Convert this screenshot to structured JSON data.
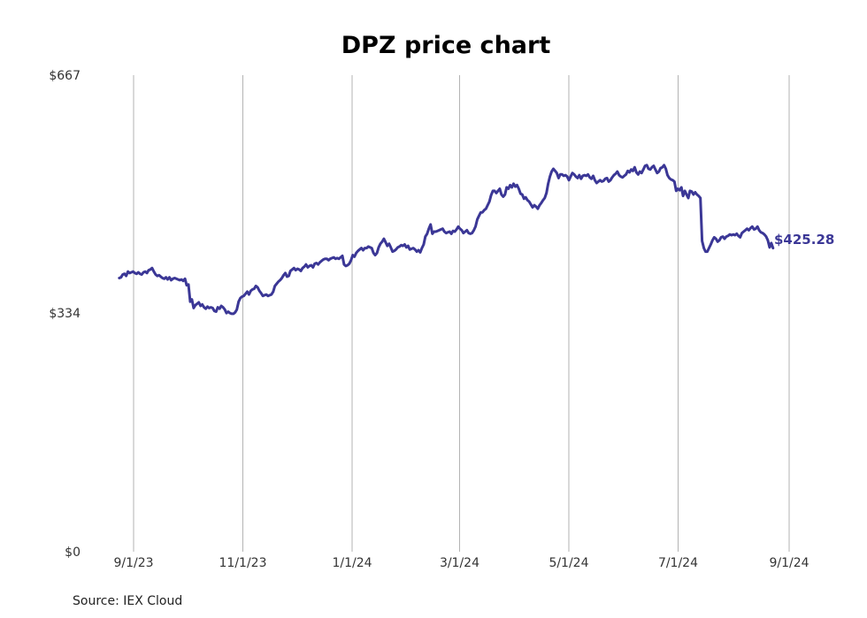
{
  "chart_data": {
    "type": "line",
    "title": "DPZ price chart",
    "source": "Source: IEX Cloud",
    "xlabel": "",
    "ylabel": "",
    "x_start": "2023-08-24",
    "x_end": "2024-08-23",
    "xlim": [
      "2023-08-01",
      "2024-09-01"
    ],
    "ylim": [
      0,
      667
    ],
    "y_ticks": [
      {
        "value": 0,
        "label": "$0"
      },
      {
        "value": 334,
        "label": "$334"
      },
      {
        "value": 667,
        "label": "$667"
      }
    ],
    "x_ticks": [
      {
        "date": "2023-09-01",
        "label": "9/1/23"
      },
      {
        "date": "2023-11-01",
        "label": "11/1/23"
      },
      {
        "date": "2024-01-01",
        "label": "1/1/24"
      },
      {
        "date": "2024-03-01",
        "label": "3/1/24"
      },
      {
        "date": "2024-05-01",
        "label": "5/1/24"
      },
      {
        "date": "2024-07-01",
        "label": "7/1/24"
      },
      {
        "date": "2024-09-01",
        "label": "9/1/24"
      }
    ],
    "grid": {
      "x": true,
      "y": false
    },
    "series": [
      {
        "color": "#3b3796",
        "end_label": "$425.28",
        "values": [
          383,
          384,
          388,
          389,
          386,
          392,
          390,
          391,
          392,
          390,
          389,
          391,
          389,
          388,
          391,
          392,
          390,
          394,
          395,
          397,
          392,
          388,
          386,
          387,
          385,
          383,
          382,
          384,
          381,
          384,
          380,
          382,
          383,
          382,
          381,
          380,
          381,
          379,
          382,
          373,
          374,
          350,
          353,
          341,
          345,
          347,
          349,
          344,
          346,
          342,
          340,
          343,
          341,
          342,
          341,
          337,
          336,
          342,
          340,
          344,
          342,
          339,
          334,
          336,
          334,
          333,
          333,
          335,
          339,
          350,
          355,
          357,
          358,
          361,
          364,
          360,
          365,
          367,
          368,
          372,
          370,
          365,
          362,
          358,
          359,
          360,
          358,
          359,
          360,
          364,
          372,
          375,
          378,
          380,
          383,
          387,
          390,
          385,
          386,
          393,
          395,
          397,
          394,
          396,
          395,
          393,
          397,
          399,
          402,
          398,
          400,
          401,
          398,
          403,
          404,
          402,
          405,
          407,
          409,
          410,
          410,
          408,
          410,
          411,
          412,
          410,
          411,
          410,
          412,
          414,
          402,
          400,
          401,
          403,
          408,
          415,
          413,
          418,
          421,
          423,
          425,
          422,
          425,
          425,
          427,
          426,
          425,
          418,
          415,
          418,
          426,
          431,
          434,
          438,
          433,
          428,
          431,
          426,
          420,
          421,
          423,
          426,
          427,
          429,
          428,
          430,
          426,
          428,
          423,
          424,
          425,
          423,
          420,
          422,
          419,
          425,
          430,
          441,
          445,
          452,
          458,
          445,
          448,
          448,
          449,
          450,
          451,
          452,
          448,
          446,
          447,
          448,
          445,
          449,
          448,
          451,
          455,
          452,
          450,
          446,
          448,
          450,
          446,
          445,
          446,
          450,
          455,
          465,
          470,
          475,
          475,
          478,
          480,
          485,
          490,
          499,
          505,
          505,
          502,
          505,
          508,
          500,
          497,
          500,
          510,
          508,
          513,
          510,
          515,
          511,
          513,
          508,
          501,
          500,
          494,
          496,
          492,
          490,
          486,
          482,
          485,
          483,
          480,
          485,
          488,
          492,
          495,
          502,
          515,
          525,
          532,
          536,
          533,
          530,
          523,
          528,
          528,
          526,
          527,
          525,
          520,
          525,
          530,
          528,
          525,
          523,
          527,
          522,
          526,
          527,
          526,
          528,
          524,
          522,
          526,
          520,
          516,
          518,
          520,
          518,
          519,
          522,
          523,
          518,
          520,
          524,
          527,
          529,
          532,
          527,
          525,
          524,
          526,
          528,
          533,
          531,
          535,
          533,
          538,
          531,
          528,
          532,
          530,
          535,
          540,
          541,
          536,
          535,
          538,
          540,
          535,
          530,
          532,
          537,
          538,
          541,
          536,
          527,
          523,
          521,
          520,
          518,
          505,
          508,
          506,
          510,
          498,
          505,
          500,
          495,
          505,
          504,
          500,
          503,
          500,
          498,
          495,
          435,
          425,
          420,
          420,
          425,
          430,
          436,
          440,
          438,
          434,
          436,
          440,
          441,
          438,
          441,
          442,
          444,
          443,
          444,
          443,
          445,
          442,
          440,
          446,
          448,
          450,
          452,
          450,
          453,
          455,
          451,
          452,
          455,
          450,
          447,
          446,
          444,
          441,
          436,
          426,
          432,
          425
        ]
      }
    ]
  }
}
